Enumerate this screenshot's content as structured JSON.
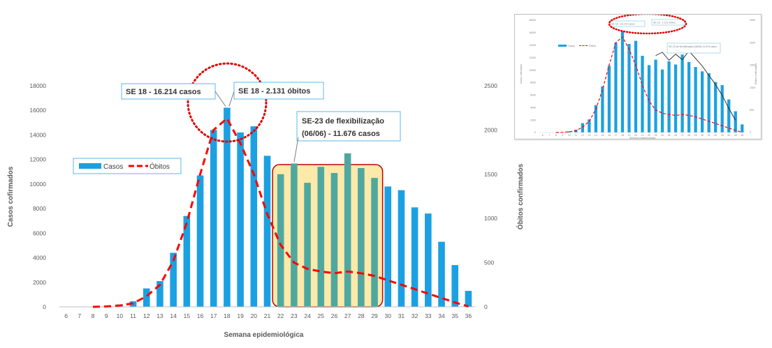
{
  "chart_data": [
    {
      "type": "bar",
      "title": "",
      "xlabel": "Semana epidemiológica",
      "ylabel": "Casos cofirmados",
      "y2label": "Óbitos confirmados",
      "categories": [
        "6",
        "7",
        "8",
        "9",
        "10",
        "11",
        "12",
        "13",
        "14",
        "15",
        "16",
        "17",
        "18",
        "19",
        "20",
        "21",
        "22",
        "23",
        "24",
        "25",
        "26",
        "27",
        "28",
        "29",
        "30",
        "31",
        "32",
        "33",
        "34",
        "35",
        "36"
      ],
      "series": [
        {
          "name": "Casos",
          "axis": "left",
          "kind": "bar",
          "color": "#1ba1e2",
          "values": [
            0,
            0,
            0,
            50,
            200,
            450,
            1500,
            2100,
            4400,
            7400,
            10700,
            14400,
            16214,
            14200,
            14700,
            12300,
            10800,
            11676,
            10100,
            11400,
            10900,
            12500,
            11300,
            10500,
            9800,
            9500,
            8100,
            7600,
            5300,
            3400,
            1300
          ]
        },
        {
          "name": "Óbitos",
          "axis": "right",
          "kind": "line",
          "color": "#ff0000",
          "values": [
            null,
            null,
            0,
            5,
            15,
            40,
            120,
            250,
            520,
            950,
            1500,
            2000,
            2131,
            1850,
            1500,
            1050,
            700,
            500,
            430,
            400,
            380,
            400,
            380,
            350,
            300,
            250,
            200,
            150,
            100,
            50,
            5
          ]
        }
      ],
      "ylim": [
        0,
        18000
      ],
      "y2lim": [
        0,
        2500
      ],
      "yticks": [
        "0",
        "2000",
        "4000",
        "6000",
        "8000",
        "10000",
        "12000",
        "14000",
        "16000",
        "18000"
      ],
      "y2ticks": [
        "0",
        "500",
        "1000",
        "1500",
        "2000",
        "2500"
      ],
      "legend": {
        "position": "left",
        "items": [
          "Casos",
          "Óbitos"
        ]
      },
      "grid": false,
      "annotations": [
        {
          "text": "SE 18 - 16.214 casos"
        },
        {
          "text": "SE 18 - 2.131 óbitos"
        },
        {
          "lines": [
            "SE-23 de flexibilização",
            "(06/06) - 11.676 casos"
          ]
        }
      ],
      "highlight": {
        "from": "22",
        "to": "29",
        "fill": "#fde9a9",
        "stroke": "#c00000"
      }
    },
    {
      "type": "bar",
      "title": "",
      "xlabel": "Semana epidemiológica",
      "ylabel": "Casos cofirmados",
      "y2label": "Óbitos confirmados",
      "categories": [
        "6",
        "7",
        "8",
        "9",
        "10",
        "11",
        "12",
        "13",
        "14",
        "15",
        "16",
        "17",
        "18",
        "19",
        "20",
        "21",
        "22",
        "23",
        "24",
        "25",
        "26",
        "27",
        "28",
        "29",
        "30",
        "31",
        "32",
        "33",
        "34",
        "35",
        "36"
      ],
      "series": [
        {
          "name": "Casos",
          "axis": "left",
          "kind": "bar",
          "values": [
            0,
            0,
            0,
            50,
            200,
            450,
            1500,
            2100,
            4400,
            7400,
            10700,
            14400,
            16214,
            14200,
            14700,
            12300,
            10800,
            11676,
            10100,
            11400,
            10900,
            12500,
            11300,
            10500,
            9800,
            9500,
            8100,
            7600,
            5300,
            3400,
            1300
          ]
        },
        {
          "name": "Óbitos",
          "axis": "right",
          "kind": "line",
          "values": [
            null,
            null,
            0,
            5,
            15,
            40,
            120,
            250,
            520,
            950,
            1500,
            2000,
            2131,
            1850,
            1500,
            1050,
            700,
            500,
            430,
            400,
            380,
            400,
            380,
            350,
            300,
            250,
            200,
            150,
            100,
            50,
            5
          ]
        }
      ],
      "ylim": [
        0,
        18000
      ],
      "y2lim": [
        0,
        2500
      ],
      "yticks": [
        "0",
        "2000",
        "4000",
        "6000",
        "8000",
        "10000",
        "12000",
        "14000",
        "16000",
        "18000"
      ],
      "y2ticks": [
        "0",
        "500",
        "1000",
        "1500",
        "2000",
        "2500"
      ],
      "legend": {
        "position": "left",
        "items": [
          "Casos",
          "Óbitos"
        ]
      },
      "annotations": [
        {
          "text": "SE 18 - 16.214 casos"
        },
        {
          "text": "SE 18 - 2.131 óbitos"
        },
        {
          "text": "SE-23 de flexibilização (06/06) 11.676 casos"
        }
      ],
      "trendline": [
        11676,
        12200,
        10900,
        11900,
        11000,
        12400,
        11200,
        10000,
        8500,
        7000,
        5300,
        3200,
        1300
      ]
    }
  ]
}
